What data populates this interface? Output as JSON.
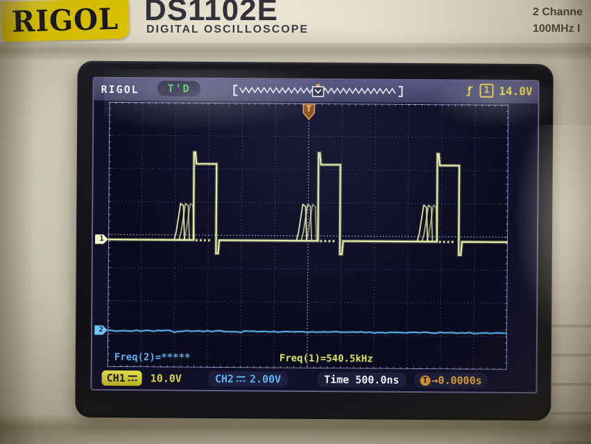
{
  "device": {
    "brand_logo": "RIGOL",
    "model": "DS1102E",
    "model_subtitle": "DIGITAL OSCILLOSCOPE",
    "spec_channels": "2 Channe",
    "spec_bandwidth": "100MHz I"
  },
  "display": {
    "top_bar": {
      "brand": "RIGOL",
      "trigger_status": "T'D",
      "trigger_source": "1",
      "trigger_level": "14.0V"
    },
    "left_markers": {
      "ch1": "1",
      "ch2": "2"
    },
    "measurements": {
      "freq_ch2": "Freq(2)=*****",
      "freq_ch1": "Freq(1)=540.5kHz"
    },
    "bottom_bar": {
      "ch1_label": "CH1",
      "ch1_scale": "10.0V",
      "ch2_label": "CH2",
      "ch2_scale": "2.00V",
      "time_label": "Time",
      "time_value": "500.0ns",
      "trig_offset_prefix": "T",
      "trig_offset_value": "→0.0000s"
    },
    "colors": {
      "ch1": "#e9efa6",
      "ch2": "#5cb8f0",
      "trigger_orange": "#f0a040",
      "status_green": "#38d04e",
      "value_yellow": "#ded63e"
    }
  },
  "chart_data": {
    "type": "line",
    "title": "Oscilloscope trace: CH1 pulse train with pre-pulse jitter ringing, CH2 flat line",
    "x_divisions": 12,
    "y_divisions": 8,
    "timebase_per_div": "500.0ns",
    "trigger": {
      "level": "14.0V",
      "offset": "0.0000s",
      "position_div": 6,
      "marker_label": "T"
    },
    "series": [
      {
        "name": "CH1",
        "volts_per_div": "10.0V",
        "measured_freq": "540.5kHz",
        "baseline_div": 4.15,
        "pulse_top_div": 1.85,
        "spike_top_div": 1.5,
        "undershoot_div": 4.55,
        "ring_peak_div": 3.05,
        "pulses": [
          {
            "ring_start_div": 1.98,
            "rise_div": 2.56,
            "fall_div": 3.26
          },
          {
            "ring_start_div": 5.65,
            "rise_div": 6.3,
            "fall_div": 6.98
          },
          {
            "ring_start_div": 9.28,
            "rise_div": 9.87,
            "fall_div": 10.55
          }
        ]
      },
      {
        "name": "CH2",
        "volts_per_div": "2.00V",
        "measured_freq": "*****",
        "level_div": 6.9
      }
    ]
  }
}
